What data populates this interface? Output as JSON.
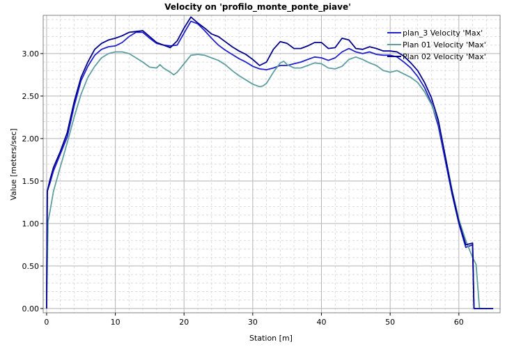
{
  "chart_data": {
    "type": "line",
    "title": "Velocity on 'profilo_monte_ponte_piave'",
    "xlabel": "Station [m]",
    "ylabel": "Value [meters/sec]",
    "xlim": [
      -0.5,
      66
    ],
    "ylim": [
      -0.05,
      3.45
    ],
    "xticks": [
      0,
      10,
      20,
      30,
      40,
      50,
      60
    ],
    "xtick_labels": [
      "0",
      "10",
      "20",
      "30",
      "40",
      "50",
      "60"
    ],
    "yticks": [
      0,
      0.5,
      1.0,
      1.5,
      2.0,
      2.5,
      3.0
    ],
    "ytick_labels": [
      "0.00",
      "0.50",
      "1.00",
      "1.50",
      "2.00",
      "2.50",
      "3.00"
    ],
    "grid": true,
    "legend_position": "top-right",
    "series": [
      {
        "name": "plan_3 Velocity 'Max'",
        "color": "#1f1fcc",
        "points": [
          [
            0,
            0
          ],
          [
            0.1,
            1.38
          ],
          [
            0.5,
            1.48
          ],
          [
            1,
            1.62
          ],
          [
            2,
            1.82
          ],
          [
            3,
            2.02
          ],
          [
            4,
            2.38
          ],
          [
            5,
            2.68
          ],
          [
            6,
            2.85
          ],
          [
            7,
            2.98
          ],
          [
            8,
            3.05
          ],
          [
            9,
            3.08
          ],
          [
            10,
            3.09
          ],
          [
            11,
            3.13
          ],
          [
            12,
            3.2
          ],
          [
            13,
            3.25
          ],
          [
            14,
            3.25
          ],
          [
            15,
            3.18
          ],
          [
            16,
            3.12
          ],
          [
            17,
            3.1
          ],
          [
            18,
            3.09
          ],
          [
            19,
            3.1
          ],
          [
            20,
            3.24
          ],
          [
            21,
            3.38
          ],
          [
            22,
            3.35
          ],
          [
            23,
            3.27
          ],
          [
            24,
            3.18
          ],
          [
            25,
            3.1
          ],
          [
            26,
            3.04
          ],
          [
            27,
            2.99
          ],
          [
            28,
            2.94
          ],
          [
            29,
            2.9
          ],
          [
            30,
            2.85
          ],
          [
            31,
            2.82
          ],
          [
            32,
            2.81
          ],
          [
            33,
            2.83
          ],
          [
            34,
            2.86
          ],
          [
            35,
            2.86
          ],
          [
            36,
            2.88
          ],
          [
            37,
            2.9
          ],
          [
            38,
            2.93
          ],
          [
            39,
            2.96
          ],
          [
            40,
            2.95
          ],
          [
            41,
            2.92
          ],
          [
            42,
            2.95
          ],
          [
            43,
            3.02
          ],
          [
            44,
            3.06
          ],
          [
            45,
            3.02
          ],
          [
            46,
            3.0
          ],
          [
            47,
            3.02
          ],
          [
            48,
            2.99
          ],
          [
            49,
            2.98
          ],
          [
            50,
            2.98
          ],
          [
            51,
            2.96
          ],
          [
            52,
            2.9
          ],
          [
            53,
            2.83
          ],
          [
            54,
            2.73
          ],
          [
            55,
            2.6
          ],
          [
            56,
            2.42
          ],
          [
            57,
            2.15
          ],
          [
            58,
            1.75
          ],
          [
            59,
            1.35
          ],
          [
            60,
            1.0
          ],
          [
            61,
            0.72
          ],
          [
            62,
            0.75
          ],
          [
            62.2,
            0
          ],
          [
            65,
            0
          ]
        ]
      },
      {
        "name": "Plan 01 Velocity 'Max'",
        "color": "#5f9ea0",
        "points": [
          [
            0,
            0
          ],
          [
            0.2,
            1.02
          ],
          [
            0.5,
            1.15
          ],
          [
            1,
            1.38
          ],
          [
            2,
            1.67
          ],
          [
            3,
            1.95
          ],
          [
            4,
            2.25
          ],
          [
            5,
            2.52
          ],
          [
            6,
            2.72
          ],
          [
            7,
            2.85
          ],
          [
            8,
            2.95
          ],
          [
            9,
            3.0
          ],
          [
            10,
            3.02
          ],
          [
            11,
            3.02
          ],
          [
            12,
            3.0
          ],
          [
            13,
            2.95
          ],
          [
            14,
            2.9
          ],
          [
            15,
            2.84
          ],
          [
            16,
            2.83
          ],
          [
            16.5,
            2.87
          ],
          [
            17,
            2.83
          ],
          [
            18,
            2.78
          ],
          [
            18.5,
            2.75
          ],
          [
            19,
            2.78
          ],
          [
            20,
            2.88
          ],
          [
            21,
            2.98
          ],
          [
            22,
            2.99
          ],
          [
            23,
            2.98
          ],
          [
            24,
            2.95
          ],
          [
            25,
            2.92
          ],
          [
            26,
            2.87
          ],
          [
            27,
            2.8
          ],
          [
            28,
            2.74
          ],
          [
            29,
            2.69
          ],
          [
            30,
            2.64
          ],
          [
            31,
            2.61
          ],
          [
            31.5,
            2.62
          ],
          [
            32,
            2.65
          ],
          [
            33,
            2.78
          ],
          [
            34,
            2.89
          ],
          [
            34.5,
            2.91
          ],
          [
            35,
            2.87
          ],
          [
            36,
            2.83
          ],
          [
            37,
            2.83
          ],
          [
            38,
            2.86
          ],
          [
            39,
            2.89
          ],
          [
            40,
            2.88
          ],
          [
            41,
            2.83
          ],
          [
            42,
            2.82
          ],
          [
            43,
            2.85
          ],
          [
            44,
            2.93
          ],
          [
            45,
            2.96
          ],
          [
            46,
            2.93
          ],
          [
            47,
            2.89
          ],
          [
            48,
            2.86
          ],
          [
            49,
            2.8
          ],
          [
            50,
            2.78
          ],
          [
            51,
            2.8
          ],
          [
            52,
            2.76
          ],
          [
            53,
            2.72
          ],
          [
            54,
            2.66
          ],
          [
            55,
            2.55
          ],
          [
            56,
            2.4
          ],
          [
            57,
            2.2
          ],
          [
            58,
            1.8
          ],
          [
            59,
            1.4
          ],
          [
            60,
            1.05
          ],
          [
            61,
            0.8
          ],
          [
            62,
            0.6
          ],
          [
            62.5,
            0.52
          ],
          [
            63,
            0
          ],
          [
            65,
            0
          ]
        ]
      },
      {
        "name": "Plan 02 Velocity 'Max'",
        "color": "#00008b",
        "points": [
          [
            0,
            0
          ],
          [
            0.1,
            1.38
          ],
          [
            0.5,
            1.52
          ],
          [
            1,
            1.66
          ],
          [
            2,
            1.85
          ],
          [
            3,
            2.07
          ],
          [
            4,
            2.43
          ],
          [
            5,
            2.72
          ],
          [
            6,
            2.9
          ],
          [
            7,
            3.05
          ],
          [
            8,
            3.12
          ],
          [
            9,
            3.16
          ],
          [
            10,
            3.18
          ],
          [
            11,
            3.21
          ],
          [
            12,
            3.25
          ],
          [
            13,
            3.26
          ],
          [
            14,
            3.27
          ],
          [
            15,
            3.2
          ],
          [
            16,
            3.13
          ],
          [
            17,
            3.1
          ],
          [
            18,
            3.07
          ],
          [
            19,
            3.15
          ],
          [
            20,
            3.3
          ],
          [
            21,
            3.43
          ],
          [
            22,
            3.36
          ],
          [
            23,
            3.3
          ],
          [
            24,
            3.23
          ],
          [
            25,
            3.2
          ],
          [
            26,
            3.14
          ],
          [
            27,
            3.08
          ],
          [
            28,
            3.03
          ],
          [
            29,
            2.99
          ],
          [
            30,
            2.93
          ],
          [
            31,
            2.86
          ],
          [
            32,
            2.9
          ],
          [
            33,
            3.05
          ],
          [
            34,
            3.14
          ],
          [
            35,
            3.12
          ],
          [
            36,
            3.06
          ],
          [
            37,
            3.06
          ],
          [
            38,
            3.09
          ],
          [
            39,
            3.13
          ],
          [
            40,
            3.13
          ],
          [
            41,
            3.06
          ],
          [
            42,
            3.07
          ],
          [
            43,
            3.18
          ],
          [
            44,
            3.16
          ],
          [
            45,
            3.06
          ],
          [
            46,
            3.05
          ],
          [
            47,
            3.08
          ],
          [
            48,
            3.06
          ],
          [
            49,
            3.03
          ],
          [
            50,
            3.03
          ],
          [
            51,
            3.02
          ],
          [
            52,
            2.97
          ],
          [
            53,
            2.89
          ],
          [
            54,
            2.8
          ],
          [
            55,
            2.66
          ],
          [
            56,
            2.48
          ],
          [
            57,
            2.22
          ],
          [
            58,
            1.8
          ],
          [
            59,
            1.38
          ],
          [
            60,
            1.02
          ],
          [
            61,
            0.75
          ],
          [
            62,
            0.77
          ],
          [
            62.2,
            0
          ],
          [
            65,
            0
          ]
        ]
      }
    ]
  }
}
